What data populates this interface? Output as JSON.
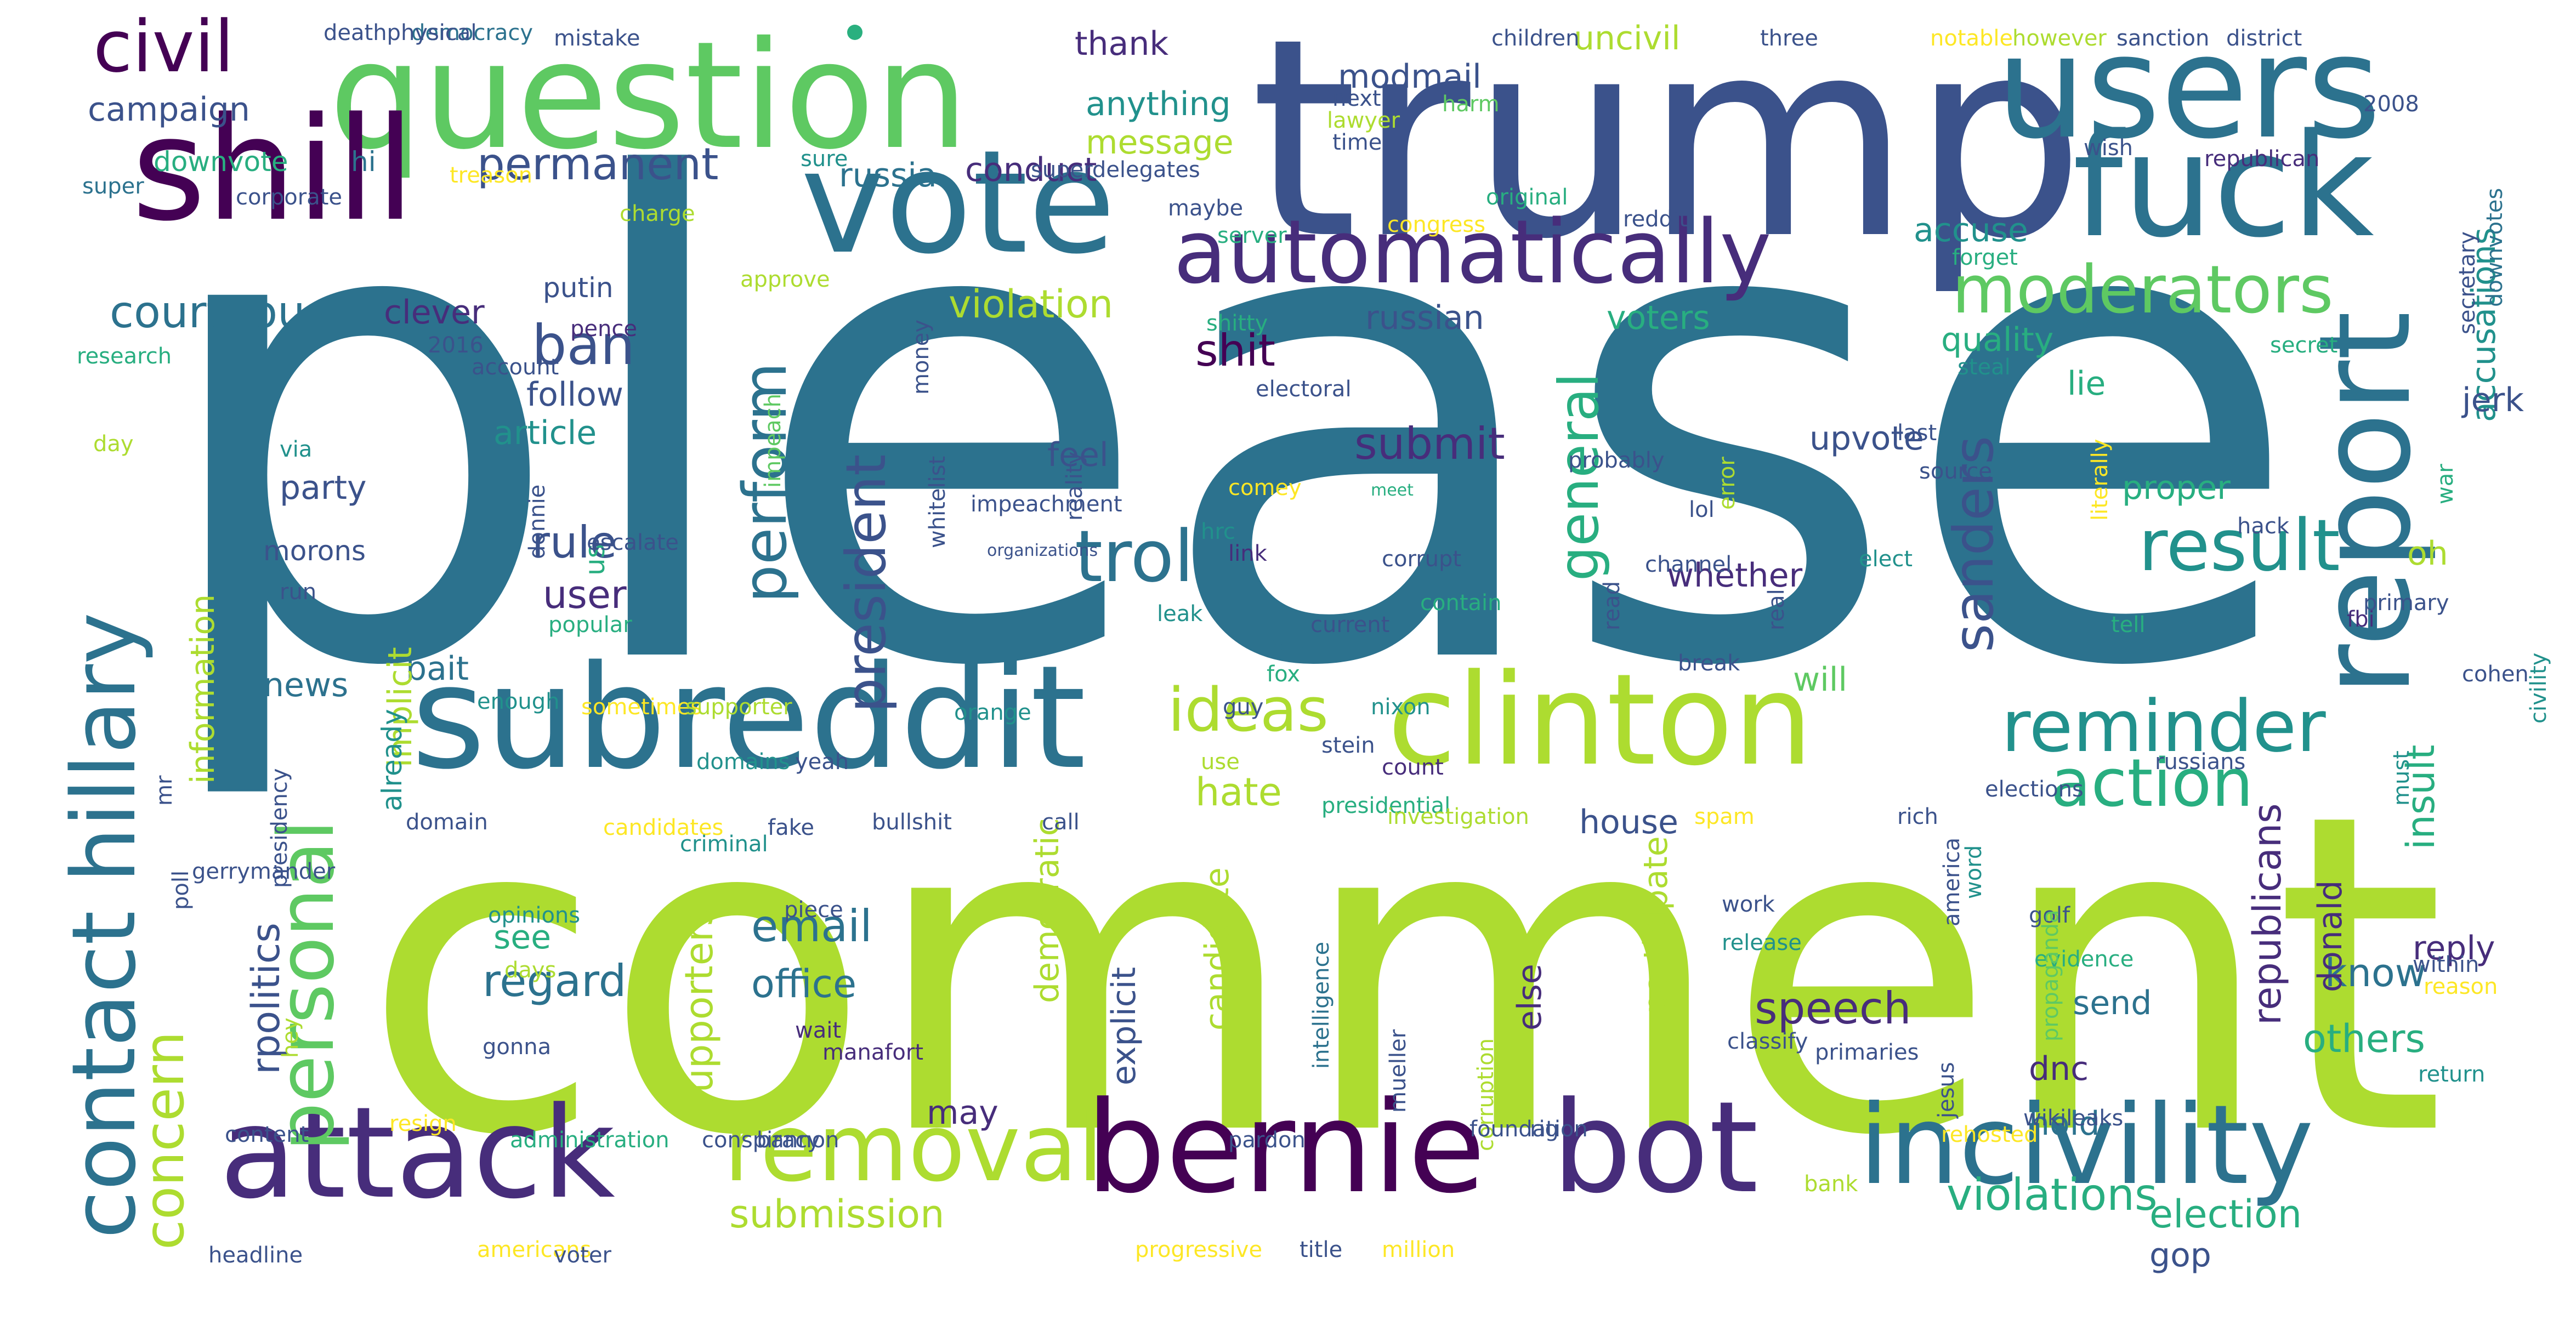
{
  "palette": {
    "deep_purple": "#440154",
    "indigo": "#472d7b",
    "slate_blue": "#3b528b",
    "steel_blue": "#2c728e",
    "teal": "#21918c",
    "sea_green": "#28ae80",
    "green": "#5ec962",
    "lime": "#addc30",
    "yellow": "#fde725"
  },
  "words": [
    {
      "text": "please",
      "color": "steel_blue"
    },
    {
      "text": "comment",
      "color": "lime"
    },
    {
      "text": "trump",
      "color": "slate_blue"
    },
    {
      "text": "question",
      "color": "green"
    },
    {
      "text": "users",
      "color": "steel_blue"
    },
    {
      "text": "shill",
      "color": "deep_purple"
    },
    {
      "text": "vote",
      "color": "steel_blue"
    },
    {
      "text": "fuck",
      "color": "steel_blue"
    },
    {
      "text": "subreddit",
      "color": "steel_blue"
    },
    {
      "text": "clinton",
      "color": "lime"
    },
    {
      "text": "report",
      "color": "steel_blue"
    },
    {
      "text": "automatically",
      "color": "indigo"
    },
    {
      "text": "attack",
      "color": "indigo"
    },
    {
      "text": "bernie",
      "color": "deep_purple"
    },
    {
      "text": "bot",
      "color": "indigo"
    },
    {
      "text": "incivility",
      "color": "steel_blue"
    },
    {
      "text": "removal",
      "color": "lime"
    },
    {
      "text": "civil",
      "color": "deep_purple"
    },
    {
      "text": "contact hillary",
      "color": "steel_blue"
    },
    {
      "text": "personal",
      "color": "green"
    },
    {
      "text": "moderators",
      "color": "green"
    },
    {
      "text": "troll",
      "color": "steel_blue"
    },
    {
      "text": "result",
      "color": "teal"
    },
    {
      "text": "reminder",
      "color": "teal"
    },
    {
      "text": "action",
      "color": "sea_green"
    },
    {
      "text": "ideas",
      "color": "lime"
    },
    {
      "text": "perform",
      "color": "steel_blue"
    },
    {
      "text": "president",
      "color": "slate_blue"
    },
    {
      "text": "general",
      "color": "sea_green"
    },
    {
      "text": "sanders",
      "color": "slate_blue"
    },
    {
      "text": "concern",
      "color": "lime"
    },
    {
      "text": "permanent",
      "color": "slate_blue"
    },
    {
      "text": "ban",
      "color": "slate_blue"
    },
    {
      "text": "courteous",
      "color": "steel_blue"
    },
    {
      "text": "campaign",
      "color": "slate_blue"
    },
    {
      "text": "violation",
      "color": "lime"
    },
    {
      "text": "accusations",
      "color": "teal"
    },
    {
      "text": "rule",
      "color": "slate_blue"
    },
    {
      "text": "user",
      "color": "indigo"
    },
    {
      "text": "hate",
      "color": "lime"
    },
    {
      "text": "speech",
      "color": "indigo"
    },
    {
      "text": "submit",
      "color": "indigo"
    },
    {
      "text": "shit",
      "color": "deep_purple"
    },
    {
      "text": "violations",
      "color": "sea_green"
    },
    {
      "text": "election",
      "color": "sea_green"
    },
    {
      "text": "submission",
      "color": "lime"
    },
    {
      "text": "insult",
      "color": "sea_green"
    },
    {
      "text": "republicans",
      "color": "indigo"
    },
    {
      "text": "know",
      "color": "steel_blue"
    },
    {
      "text": "others",
      "color": "sea_green"
    },
    {
      "text": "regard",
      "color": "steel_blue"
    },
    {
      "text": "email",
      "color": "steel_blue"
    },
    {
      "text": "office",
      "color": "steel_blue"
    },
    {
      "text": "supporters",
      "color": "lime"
    },
    {
      "text": "rpolitics",
      "color": "slate_blue"
    },
    {
      "text": "news",
      "color": "steel_blue"
    },
    {
      "text": "morons",
      "color": "slate_blue"
    },
    {
      "text": "party",
      "color": "slate_blue"
    },
    {
      "text": "article",
      "color": "teal"
    },
    {
      "text": "follow",
      "color": "slate_blue"
    },
    {
      "text": "putin",
      "color": "slate_blue"
    },
    {
      "text": "clever",
      "color": "indigo"
    },
    {
      "text": "russia",
      "color": "steel_blue"
    },
    {
      "text": "conduct",
      "color": "indigo"
    },
    {
      "text": "message",
      "color": "lime"
    },
    {
      "text": "anything",
      "color": "teal"
    },
    {
      "text": "thank",
      "color": "indigo"
    },
    {
      "text": "modmail",
      "color": "slate_blue"
    },
    {
      "text": "uncivil",
      "color": "lime"
    },
    {
      "text": "downvote",
      "color": "sea_green"
    },
    {
      "text": "russian",
      "color": "slate_blue"
    },
    {
      "text": "voters",
      "color": "sea_green"
    },
    {
      "text": "quality",
      "color": "sea_green"
    },
    {
      "text": "accuse",
      "color": "teal"
    },
    {
      "text": "whether",
      "color": "indigo"
    },
    {
      "text": "upvote",
      "color": "slate_blue"
    },
    {
      "text": "proper",
      "color": "sea_green"
    },
    {
      "text": "lie",
      "color": "sea_green"
    },
    {
      "text": "jerk",
      "color": "slate_blue"
    },
    {
      "text": "oh",
      "color": "lime"
    },
    {
      "text": "feel",
      "color": "slate_blue"
    },
    {
      "text": "will",
      "color": "green"
    },
    {
      "text": "house",
      "color": "slate_blue"
    },
    {
      "text": "bait",
      "color": "steel_blue"
    },
    {
      "text": "information",
      "color": "lime"
    },
    {
      "text": "implicit",
      "color": "lime"
    },
    {
      "text": "already",
      "color": "teal"
    },
    {
      "text": "see",
      "color": "sea_green"
    },
    {
      "text": "may",
      "color": "indigo"
    },
    {
      "text": "explicit",
      "color": "slate_blue"
    },
    {
      "text": "candidate",
      "color": "lime"
    },
    {
      "text": "democratic",
      "color": "lime"
    },
    {
      "text": "participate",
      "color": "lime"
    },
    {
      "text": "else",
      "color": "indigo"
    },
    {
      "text": "send",
      "color": "steel_blue"
    },
    {
      "text": "dnc",
      "color": "indigo"
    },
    {
      "text": "hold",
      "color": "steel_blue"
    },
    {
      "text": "donald",
      "color": "indigo"
    },
    {
      "text": "reply",
      "color": "indigo"
    },
    {
      "text": "gop",
      "color": "slate_blue"
    },
    {
      "text": "hi",
      "color": "steel_blue"
    },
    {
      "text": "us",
      "color": "sea_green"
    },
    {
      "text": "wish",
      "color": "slate_blue"
    },
    {
      "text": "republican",
      "color": "indigo"
    },
    {
      "text": "forget",
      "color": "sea_green"
    },
    {
      "text": "steal",
      "color": "teal"
    },
    {
      "text": "last",
      "color": "slate_blue"
    },
    {
      "text": "source",
      "color": "slate_blue"
    },
    {
      "text": "hack",
      "color": "slate_blue"
    },
    {
      "text": "fbi",
      "color": "indigo"
    },
    {
      "text": "cohen",
      "color": "slate_blue"
    },
    {
      "text": "russians",
      "color": "slate_blue"
    },
    {
      "text": "nixon",
      "color": "teal"
    },
    {
      "text": "count",
      "color": "indigo"
    },
    {
      "text": "stein",
      "color": "slate_blue"
    },
    {
      "text": "corrupt",
      "color": "slate_blue"
    },
    {
      "text": "contain",
      "color": "sea_green"
    },
    {
      "text": "leak",
      "color": "teal"
    },
    {
      "text": "fox",
      "color": "sea_green"
    },
    {
      "text": "get",
      "color": "steel_blue"
    },
    {
      "text": "current",
      "color": "slate_blue"
    },
    {
      "text": "link",
      "color": "indigo"
    },
    {
      "text": "hrc",
      "color": "teal"
    },
    {
      "text": "comey",
      "color": "yellow"
    },
    {
      "text": "electoral",
      "color": "slate_blue"
    },
    {
      "text": "shitty",
      "color": "sea_green"
    },
    {
      "text": "probably",
      "color": "slate_blue"
    },
    {
      "text": "server",
      "color": "sea_green"
    },
    {
      "text": "maybe",
      "color": "slate_blue"
    },
    {
      "text": "congress",
      "color": "yellow"
    },
    {
      "text": "original",
      "color": "sea_green"
    },
    {
      "text": "reddit",
      "color": "slate_blue"
    },
    {
      "text": "next",
      "color": "slate_blue"
    },
    {
      "text": "lawyer",
      "color": "lime"
    },
    {
      "text": "time",
      "color": "slate_blue"
    },
    {
      "text": "harm",
      "color": "green"
    },
    {
      "text": "children",
      "color": "slate_blue"
    },
    {
      "text": "three",
      "color": "slate_blue"
    },
    {
      "text": "notable",
      "color": "yellow"
    },
    {
      "text": "however",
      "color": "lime"
    },
    {
      "text": "sanction",
      "color": "slate_blue"
    },
    {
      "text": "district",
      "color": "slate_blue"
    },
    {
      "text": "2008",
      "color": "slate_blue"
    },
    {
      "text": "secretary",
      "color": "slate_blue"
    },
    {
      "text": "downvotes",
      "color": "steel_blue"
    },
    {
      "text": "secret",
      "color": "sea_green"
    },
    {
      "text": "war",
      "color": "sea_green"
    },
    {
      "text": "civility",
      "color": "teal"
    },
    {
      "text": "democracy",
      "color": "steel_blue"
    },
    {
      "text": "mistake",
      "color": "slate_blue"
    },
    {
      "text": "deathphysical",
      "color": "slate_blue"
    },
    {
      "text": "super",
      "color": "steel_blue"
    },
    {
      "text": "corporate",
      "color": "slate_blue"
    },
    {
      "text": "charge",
      "color": "lime"
    },
    {
      "text": "treason",
      "color": "yellow"
    },
    {
      "text": "sure",
      "color": "teal"
    },
    {
      "text": "superdelegates",
      "color": "slate_blue"
    },
    {
      "text": "research",
      "color": "sea_green"
    },
    {
      "text": "account",
      "color": "slate_blue"
    },
    {
      "text": "2016",
      "color": "slate_blue"
    },
    {
      "text": "pence",
      "color": "indigo"
    },
    {
      "text": "approve",
      "color": "lime"
    },
    {
      "text": "money",
      "color": "slate_blue"
    },
    {
      "text": "day",
      "color": "lime"
    },
    {
      "text": "via",
      "color": "teal"
    },
    {
      "text": "impeach",
      "color": "green"
    },
    {
      "text": "impeachment",
      "color": "slate_blue"
    },
    {
      "text": "donnie",
      "color": "slate_blue"
    },
    {
      "text": "escalate",
      "color": "slate_blue"
    },
    {
      "text": "run",
      "color": "slate_blue"
    },
    {
      "text": "popular",
      "color": "sea_green"
    },
    {
      "text": "whitelist",
      "color": "slate_blue"
    },
    {
      "text": "organizations",
      "color": "slate_blue"
    },
    {
      "text": "reality",
      "color": "slate_blue"
    },
    {
      "text": "meet",
      "color": "sea_green"
    },
    {
      "text": "error",
      "color": "lime"
    },
    {
      "text": "lol",
      "color": "slate_blue"
    },
    {
      "text": "read",
      "color": "slate_blue"
    },
    {
      "text": "channel",
      "color": "slate_blue"
    },
    {
      "text": "break",
      "color": "slate_blue"
    },
    {
      "text": "real",
      "color": "slate_blue"
    },
    {
      "text": "elect",
      "color": "teal"
    },
    {
      "text": "literally",
      "color": "yellow"
    },
    {
      "text": "tell",
      "color": "sea_green"
    },
    {
      "text": "primary",
      "color": "slate_blue"
    },
    {
      "text": "enough",
      "color": "teal"
    },
    {
      "text": "sometimes",
      "color": "yellow"
    },
    {
      "text": "supporter",
      "color": "lime"
    },
    {
      "text": "orange",
      "color": "teal"
    },
    {
      "text": "guy",
      "color": "slate_blue"
    },
    {
      "text": "mr",
      "color": "slate_blue"
    },
    {
      "text": "domains",
      "color": "teal"
    },
    {
      "text": "yeah",
      "color": "slate_blue"
    },
    {
      "text": "use",
      "color": "lime"
    },
    {
      "text": "presidential",
      "color": "sea_green"
    },
    {
      "text": "elections",
      "color": "slate_blue"
    },
    {
      "text": "domain",
      "color": "slate_blue"
    },
    {
      "text": "candidates",
      "color": "yellow"
    },
    {
      "text": "fake",
      "color": "slate_blue"
    },
    {
      "text": "bullshit",
      "color": "slate_blue"
    },
    {
      "text": "call",
      "color": "slate_blue"
    },
    {
      "text": "investigation",
      "color": "lime"
    },
    {
      "text": "spam",
      "color": "yellow"
    },
    {
      "text": "rich",
      "color": "slate_blue"
    },
    {
      "text": "must",
      "color": "teal"
    },
    {
      "text": "gerrymander",
      "color": "slate_blue"
    },
    {
      "text": "poll",
      "color": "slate_blue"
    },
    {
      "text": "presidency",
      "color": "slate_blue"
    },
    {
      "text": "criminal",
      "color": "teal"
    },
    {
      "text": "opinions",
      "color": "teal"
    },
    {
      "text": "days",
      "color": "lime"
    },
    {
      "text": "gonna",
      "color": "slate_blue"
    },
    {
      "text": "piece",
      "color": "slate_blue"
    },
    {
      "text": "wait",
      "color": "indigo"
    },
    {
      "text": "manafort",
      "color": "indigo"
    },
    {
      "text": "work",
      "color": "slate_blue"
    },
    {
      "text": "release",
      "color": "teal"
    },
    {
      "text": "classify",
      "color": "slate_blue"
    },
    {
      "text": "primaries",
      "color": "slate_blue"
    },
    {
      "text": "america",
      "color": "slate_blue"
    },
    {
      "text": "word",
      "color": "teal"
    },
    {
      "text": "golf",
      "color": "slate_blue"
    },
    {
      "text": "evidence",
      "color": "sea_green"
    },
    {
      "text": "within",
      "color": "slate_blue"
    },
    {
      "text": "reason",
      "color": "yellow"
    },
    {
      "text": "return",
      "color": "teal"
    },
    {
      "text": "propaganda",
      "color": "green"
    },
    {
      "text": "wikileaks",
      "color": "slate_blue"
    },
    {
      "text": "intelligence",
      "color": "steel_blue"
    },
    {
      "text": "mueller",
      "color": "slate_blue"
    },
    {
      "text": "corruption",
      "color": "lime"
    },
    {
      "text": "jesus",
      "color": "slate_blue"
    },
    {
      "text": "hey",
      "color": "lime"
    },
    {
      "text": "content",
      "color": "slate_blue"
    },
    {
      "text": "resign",
      "color": "yellow"
    },
    {
      "text": "administration",
      "color": "sea_green"
    },
    {
      "text": "conspiracy",
      "color": "slate_blue"
    },
    {
      "text": "bannon",
      "color": "slate_blue"
    },
    {
      "text": "pardon",
      "color": "slate_blue"
    },
    {
      "text": "foundation",
      "color": "slate_blue"
    },
    {
      "text": "rig",
      "color": "slate_blue"
    },
    {
      "text": "rehosted",
      "color": "yellow"
    },
    {
      "text": "bank",
      "color": "lime"
    },
    {
      "text": "headline",
      "color": "slate_blue"
    },
    {
      "text": "americans",
      "color": "yellow"
    },
    {
      "text": "voter",
      "color": "slate_blue"
    },
    {
      "text": "progressive",
      "color": "yellow"
    },
    {
      "text": "title",
      "color": "slate_blue"
    },
    {
      "text": "million",
      "color": "yellow"
    }
  ]
}
